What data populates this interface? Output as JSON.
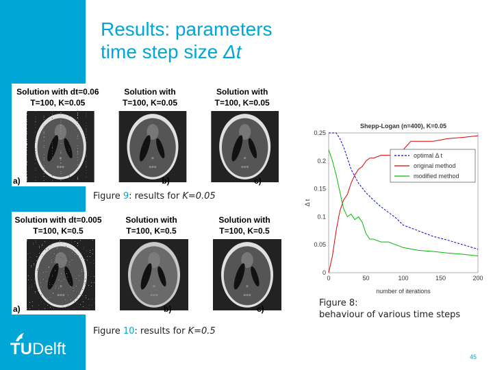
{
  "title": {
    "line1": "Results: parameters",
    "line2_text": "time step size ",
    "line2_symbol": "Δt"
  },
  "figure9": {
    "panels": [
      {
        "title1": "Solution with dt=0.06",
        "title2": "T=100, K=0.05",
        "letter": "a)"
      },
      {
        "title1": "Solution with",
        "title2": "T=100, K=0.05",
        "letter": "b)"
      },
      {
        "title1": "Solution with",
        "title2": "T=100, K=0.05",
        "letter": "c)"
      }
    ],
    "caption_prefix": "Figure ",
    "caption_num": "9",
    "caption_mid": ": results for ",
    "caption_var": "K=0.05"
  },
  "figure10": {
    "panels": [
      {
        "title1": "Solution with dt=0.005",
        "title2": "T=100, K=0.5",
        "letter": "a)"
      },
      {
        "title1": "Solution with",
        "title2": "T=100, K=0.5",
        "letter": "b)"
      },
      {
        "title1": "Solution with",
        "title2": "T=100, K=0.5",
        "letter": "c)"
      }
    ],
    "caption_prefix": "Figure ",
    "caption_num": "10",
    "caption_mid": ": results for ",
    "caption_var": "K=0.5"
  },
  "figure8": {
    "caption_line1": "Figure 8:",
    "caption_line2": "behaviour of various time steps"
  },
  "logo": {
    "tu": "TU",
    "delft": "Delft"
  },
  "page_number": "45",
  "chart_data": {
    "type": "line",
    "title": "Shepp-Logan (n=400), K=0.05",
    "xlabel": "number of iterations",
    "ylabel": "Δ t",
    "xlim": [
      0,
      200
    ],
    "ylim": [
      0,
      0.25
    ],
    "xticks": [
      "0",
      "50",
      "100",
      "150",
      "200"
    ],
    "yticks": [
      "0",
      "0.05",
      "0.1",
      "0.15",
      "0.2",
      "0.25"
    ],
    "legend_position": "top-right",
    "series": [
      {
        "name": "optimal Δ t",
        "color": "#0000cc",
        "dash": true,
        "x": [
          0,
          10,
          15,
          20,
          25,
          30,
          40,
          50,
          60,
          70,
          80,
          90,
          100,
          120,
          140,
          160,
          180,
          200
        ],
        "y": [
          0.25,
          0.25,
          0.24,
          0.225,
          0.205,
          0.185,
          0.16,
          0.143,
          0.13,
          0.118,
          0.108,
          0.098,
          0.085,
          0.075,
          0.065,
          0.058,
          0.05,
          0.042
        ]
      },
      {
        "name": "original method",
        "color": "#dd0000",
        "dash": false,
        "x": [
          0,
          5,
          10,
          15,
          20,
          25,
          30,
          35,
          40,
          45,
          50,
          55,
          60,
          70,
          80,
          90,
          100,
          110,
          120,
          140,
          160,
          180,
          200
        ],
        "y": [
          0.0,
          0.03,
          0.075,
          0.11,
          0.13,
          0.14,
          0.16,
          0.175,
          0.185,
          0.19,
          0.2,
          0.205,
          0.205,
          0.21,
          0.21,
          0.21,
          0.22,
          0.235,
          0.235,
          0.235,
          0.24,
          0.242,
          0.245
        ]
      },
      {
        "name": "modified method",
        "color": "#00bb00",
        "dash": false,
        "x": [
          0,
          5,
          10,
          15,
          20,
          25,
          30,
          35,
          40,
          45,
          50,
          55,
          60,
          70,
          80,
          100,
          120,
          140,
          160,
          180,
          200
        ],
        "y": [
          0.22,
          0.2,
          0.175,
          0.145,
          0.115,
          0.1,
          0.105,
          0.095,
          0.1,
          0.09,
          0.07,
          0.06,
          0.06,
          0.055,
          0.055,
          0.045,
          0.04,
          0.038,
          0.035,
          0.033,
          0.03
        ]
      }
    ]
  }
}
